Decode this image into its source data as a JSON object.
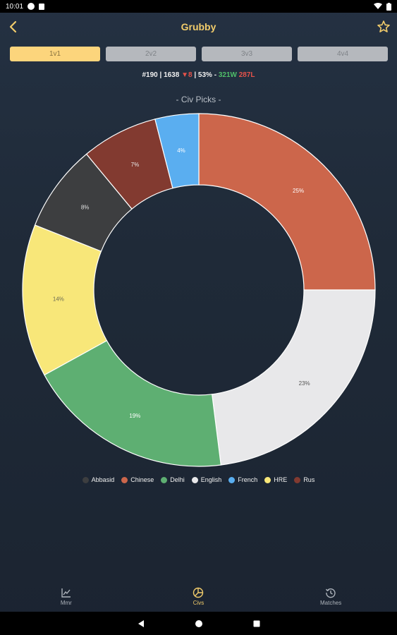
{
  "status": {
    "time": "10:01"
  },
  "appbar": {
    "title": "Grubby"
  },
  "tabs": [
    {
      "label": "1v1",
      "active": true
    },
    {
      "label": "2v2",
      "active": false
    },
    {
      "label": "3v3",
      "active": false
    },
    {
      "label": "4v4",
      "active": false
    }
  ],
  "stats": {
    "rank": "#190",
    "sep1": " | ",
    "rating": "1638",
    "sep2": " ",
    "change": "▼8",
    "sep3": " | ",
    "winrate": "53%",
    "sep4": " - ",
    "wins": "321W",
    "sep5": " ",
    "losses": "287L"
  },
  "chart_title": "- Civ Picks -",
  "chart_data": {
    "type": "pie",
    "donut": true,
    "title": "- Civ Picks -",
    "slices": [
      {
        "label": "Chinese",
        "value": 25,
        "color": "#cc664b",
        "label_color": "#ffffff"
      },
      {
        "label": "English",
        "value": 23,
        "color": "#e8e8ea",
        "label_color": "#555555"
      },
      {
        "label": "Delhi",
        "value": 19,
        "color": "#5eaf72",
        "label_color": "#ffffff"
      },
      {
        "label": "HRE",
        "value": 14,
        "color": "#f8e779",
        "label_color": "#6b6b55"
      },
      {
        "label": "Abbasid",
        "value": 8,
        "color": "#3d3e40",
        "label_color": "#e0e0e0"
      },
      {
        "label": "Rus",
        "value": 7,
        "color": "#823a30",
        "label_color": "#e8e8e8"
      },
      {
        "label": "French",
        "value": 4,
        "color": "#5aaef0",
        "label_color": "#ffffff"
      }
    ],
    "slice_labels": [
      "25%",
      "23%",
      "19%",
      "14%",
      "8%",
      "7%",
      "4%"
    ],
    "legend": [
      "Abbasid",
      "Chinese",
      "Delhi",
      "English",
      "French",
      "HRE",
      "Rus"
    ],
    "legend_placement": "bottom"
  },
  "legend": [
    {
      "label": "Abbasid",
      "color": "#3d3e40"
    },
    {
      "label": "Chinese",
      "color": "#cc664b"
    },
    {
      "label": "Delhi",
      "color": "#5eaf72"
    },
    {
      "label": "English",
      "color": "#e8e8ea"
    },
    {
      "label": "French",
      "color": "#5aaef0"
    },
    {
      "label": "HRE",
      "color": "#f8e779"
    },
    {
      "label": "Rus",
      "color": "#823a30"
    }
  ],
  "nav": {
    "mmr": "Mmr",
    "civs": "Civs",
    "matches": "Matches"
  },
  "colors": {
    "accent": "#f2cc6b",
    "active_tab": "#fcd57c",
    "inactive_tab": "#b5b8bd"
  }
}
